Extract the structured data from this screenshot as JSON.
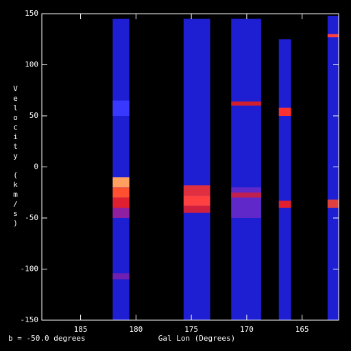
{
  "chart_data": {
    "type": "pv-diagram",
    "xlabel": "Gal Lon (Degrees)",
    "ylabel": "Velocity (km/s)",
    "annotation": "b =  -50.0 degrees",
    "xlim": [
      188.5,
      161.7
    ],
    "ylim": [
      -150,
      150
    ],
    "xticks": [
      185,
      180,
      175,
      170,
      165
    ],
    "yticks": [
      -150,
      -100,
      -50,
      0,
      50,
      100,
      150
    ],
    "background_color": "#000000",
    "strip_color": "#1e1ed2",
    "strips": [
      {
        "lon": [
          182.1,
          180.6
        ],
        "vrange": [
          -150,
          145
        ],
        "bands": [
          {
            "v": [
              -110,
              -104
            ],
            "color": "#7020b0"
          },
          {
            "v": [
              -50,
              -40
            ],
            "color": "#9020a0"
          },
          {
            "v": [
              -40,
              -30
            ],
            "color": "#e02030"
          },
          {
            "v": [
              -30,
              -20
            ],
            "color": "#ff5030"
          },
          {
            "v": [
              -20,
              -10
            ],
            "color": "#ffa060"
          },
          {
            "v": [
              50,
              65
            ],
            "color": "#3838ff"
          }
        ]
      },
      {
        "lon": [
          175.7,
          173.3
        ],
        "vrange": [
          -150,
          145
        ],
        "bands": [
          {
            "v": [
              -45,
              -38
            ],
            "color": "#d02040"
          },
          {
            "v": [
              -38,
              -28
            ],
            "color": "#ff4040"
          },
          {
            "v": [
              -28,
              -18
            ],
            "color": "#e03040"
          }
        ]
      },
      {
        "lon": [
          171.4,
          168.7
        ],
        "vrange": [
          -150,
          145
        ],
        "bands": [
          {
            "v": [
              -50,
              -20
            ],
            "color": "#6028c8"
          },
          {
            "v": [
              -30,
              -25
            ],
            "color": "#c02050"
          },
          {
            "v": [
              60,
              64
            ],
            "color": "#d02030"
          }
        ]
      },
      {
        "lon": [
          167.1,
          166.0
        ],
        "vrange": [
          -150,
          125
        ],
        "bands": [
          {
            "v": [
              -40,
              -33
            ],
            "color": "#e02030"
          },
          {
            "v": [
              50,
              58
            ],
            "color": "#ff3030"
          }
        ]
      },
      {
        "lon": [
          162.7,
          161.7
        ],
        "vrange": [
          -150,
          148
        ],
        "bands": [
          {
            "v": [
              -40,
              -32
            ],
            "color": "#e04040"
          },
          {
            "v": [
              127,
              130
            ],
            "color": "#ff4040"
          }
        ]
      }
    ]
  }
}
